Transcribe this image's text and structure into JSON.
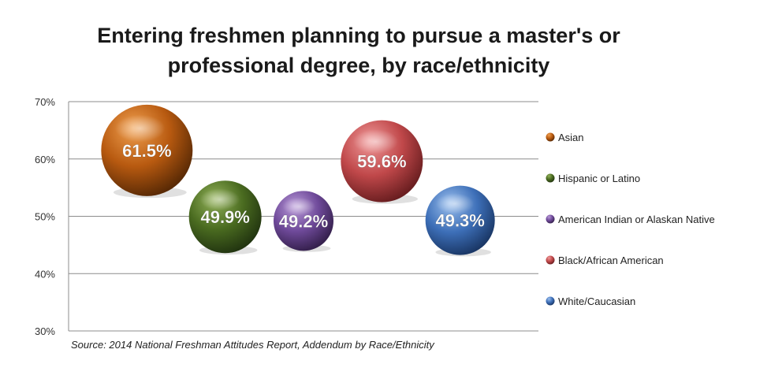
{
  "chart_data": {
    "type": "bubble",
    "title": "Entering freshmen planning to pursue a master's or\nprofessional degree, by race/ethnicity",
    "source": "Source:  2014 National Freshman Attitudes Report,  Addendum by Race/Ethnicity",
    "y_ticks": [
      "70%",
      "60%",
      "50%",
      "40%",
      "30%"
    ],
    "ylim": [
      30,
      70
    ],
    "x_position": [
      1,
      2,
      3,
      4,
      5
    ],
    "xlim": [
      0,
      6
    ],
    "grid": true,
    "legend_position": "right",
    "series": [
      {
        "name": "Asian",
        "value": 61.5,
        "label": "61.5%",
        "color": "#b85a10",
        "highlight": "#f0a050",
        "shadow": "#5a2a05"
      },
      {
        "name": "Hispanic or Latino",
        "value": 49.9,
        "label": "49.9%",
        "color": "#4a6b20",
        "highlight": "#93b25a",
        "shadow": "#223510"
      },
      {
        "name": "American Indian or Alaskan Native",
        "value": 49.2,
        "label": "49.2%",
        "color": "#6f4a9a",
        "highlight": "#b99ad8",
        "shadow": "#35204d"
      },
      {
        "name": "Black/African American",
        "value": 59.6,
        "label": "59.6%",
        "color": "#c0484a",
        "highlight": "#f09a9a",
        "shadow": "#6a1e20"
      },
      {
        "name": "White/Caucasian",
        "value": 49.3,
        "label": "49.3%",
        "color": "#3d6fb8",
        "highlight": "#9cc0ee",
        "shadow": "#1a3766"
      }
    ]
  }
}
